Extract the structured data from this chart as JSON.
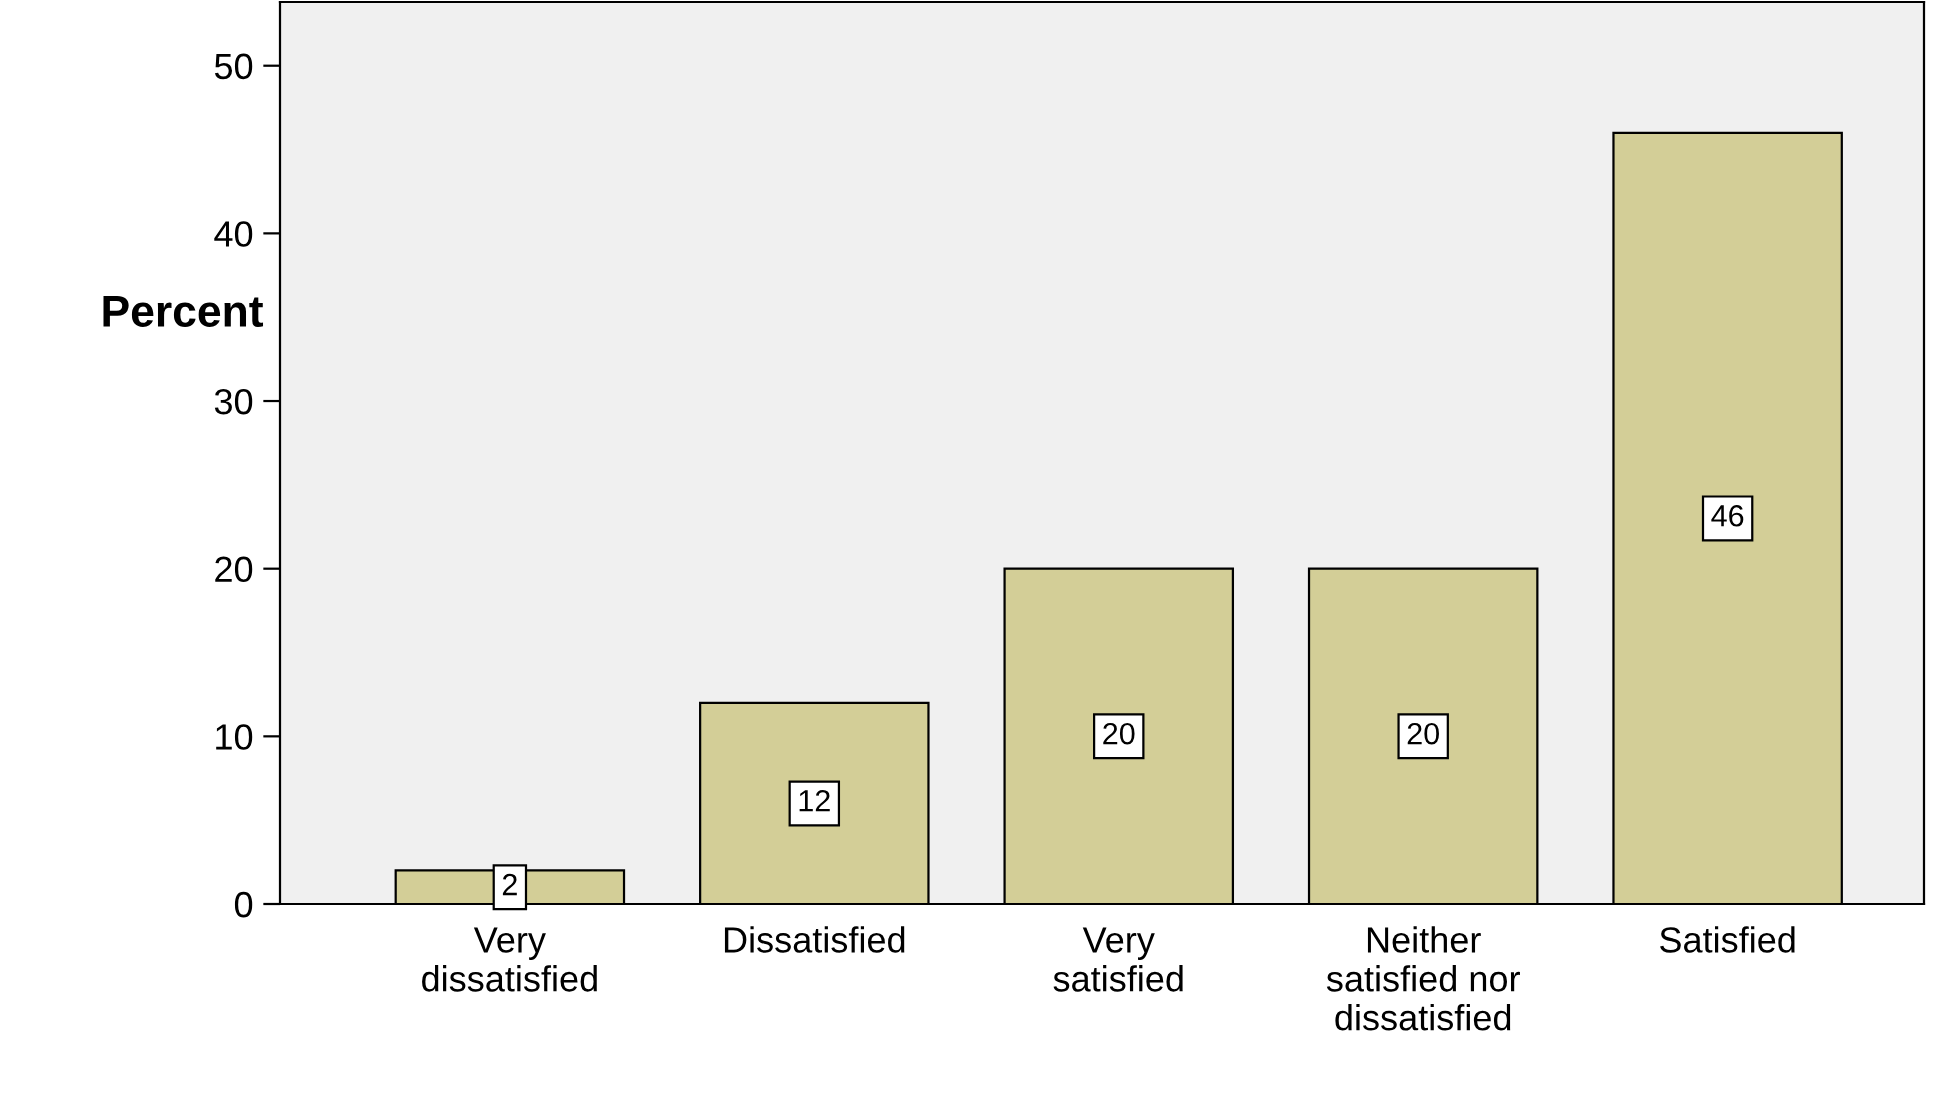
{
  "chart_data": {
    "type": "bar",
    "ylabel": "Percent",
    "categories": [
      "Very\ndissatisfied",
      "Dissatisfied",
      "Very\nsatisfied",
      "Neither\nsatisfied nor\ndissatisfied",
      "Satisfied"
    ],
    "values": [
      2,
      12,
      20,
      20,
      46
    ],
    "color": "#d3ce97",
    "ylim": [
      0,
      53.8
    ],
    "yticks": [
      0,
      10,
      20,
      30,
      40,
      50
    ],
    "data_labels": true,
    "grid": false,
    "legend": false
  }
}
